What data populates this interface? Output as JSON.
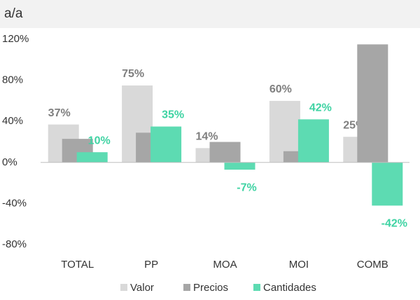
{
  "chart_data": {
    "type": "bar",
    "title": "a/a",
    "categories": [
      "TOTAL",
      "PP",
      "MOA",
      "MOI",
      "COMB"
    ],
    "series": [
      {
        "name": "Valor",
        "color": "#d9d9d9",
        "values": [
          37,
          75,
          14,
          60,
          25
        ],
        "value_labels": [
          "37%",
          "75%",
          "14%",
          "60%",
          "25%"
        ],
        "label_color": "#7f7f7f"
      },
      {
        "name": "Precios",
        "color": "#a6a6a6",
        "values": [
          23,
          29,
          20,
          11,
          115
        ]
      },
      {
        "name": "Cantidades",
        "color": "#5ddbb2",
        "values": [
          10,
          35,
          -7,
          42,
          -42
        ],
        "value_labels": [
          "10%",
          "35%",
          "-7%",
          "42%",
          "-42%"
        ],
        "label_color": "#3fd3a3"
      }
    ],
    "ylim": [
      -80,
      120
    ],
    "yticks": [
      {
        "value": -80,
        "label": "-80%"
      },
      {
        "value": -40,
        "label": "-40%"
      },
      {
        "value": 0,
        "label": "0%"
      },
      {
        "value": 40,
        "label": "40%"
      },
      {
        "value": 80,
        "label": "80%"
      },
      {
        "value": 120,
        "label": "120%"
      }
    ],
    "grid": false,
    "legend": "bottom"
  }
}
